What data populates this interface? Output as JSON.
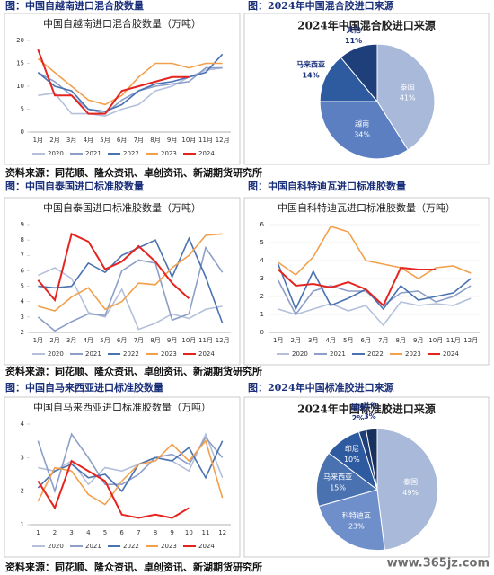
{
  "headers": [
    "图：中国自越南进口混合胶数量",
    "图：2024年中国混合胶进口来源",
    "图：中国自泰国进口标准胶数量",
    "图：中国自科特迪瓦进口标准胶数量",
    "图：中国自马来西亚进口标准胶数量",
    "图：2024年中国标准胶进口来源"
  ],
  "sources": [
    "资料来源：同花顺、隆众资讯、卓创资讯、新湖期货研究所",
    "资料来源：同花顺、隆众资讯、卓创资讯、新湖期货研究所",
    "资料来源：同花顺、隆众资讯、卓创资讯、新湖期货研究所"
  ],
  "watermark": "www.365jz.com",
  "chart_data": [
    {
      "type": "line",
      "title": "中国自越南进口混合胶数量（万吨）",
      "categories": [
        "1月",
        "2月",
        "3月",
        "4月",
        "5月",
        "6月",
        "7月",
        "8月",
        "9月",
        "10月",
        "11月",
        "12月"
      ],
      "ylim": [
        0,
        20
      ],
      "yticks": [
        0,
        5,
        10,
        15,
        20
      ],
      "grid": false,
      "series": [
        {
          "name": "2020",
          "color": "#b4c0da",
          "values": [
            8,
            8.5,
            4,
            4,
            3.5,
            5,
            6,
            9,
            10,
            12,
            13.5,
            14
          ]
        },
        {
          "name": "2021",
          "color": "#8d9fc9",
          "values": [
            13,
            11,
            8,
            5,
            4,
            7,
            9,
            10,
            10.5,
            11,
            14,
            14
          ]
        },
        {
          "name": "2022",
          "color": "#4a72b0",
          "values": [
            13,
            10,
            9,
            5,
            4.5,
            6,
            9,
            10.5,
            11,
            12,
            13,
            17
          ]
        },
        {
          "name": "2023",
          "color": "#f2a04c",
          "values": [
            16,
            13,
            10,
            7,
            6,
            8,
            12,
            15,
            15,
            14,
            15,
            15
          ]
        },
        {
          "name": "2024",
          "color": "#e52420",
          "values": [
            18,
            8,
            8,
            4,
            4,
            9,
            10,
            11,
            12,
            12,
            null,
            null
          ]
        }
      ]
    },
    {
      "type": "pie",
      "title": "2024年中国混合胶进口来源",
      "categories": [
        "泰国",
        "越南",
        "马来西亚",
        "其他"
      ],
      "values": [
        41,
        34,
        14,
        11
      ],
      "value_labels": [
        "41%",
        "34%",
        "14%",
        "11%"
      ],
      "colors": [
        "#a9b9d9",
        "#5b7fc0",
        "#2e5aa0",
        "#1f3f7a"
      ]
    },
    {
      "type": "line",
      "title": "中国自泰国进口标准胶数量（万吨）",
      "categories": [
        "1月",
        "2月",
        "3月",
        "4月",
        "5月",
        "6月",
        "7月",
        "8月",
        "9月",
        "10月",
        "11月",
        "12月"
      ],
      "ylim": [
        2,
        9
      ],
      "yticks": [
        2,
        3,
        4,
        5,
        6,
        7,
        8,
        9
      ],
      "grid": false,
      "series": [
        {
          "name": "2020",
          "color": "#b4c0da",
          "values": [
            5.7,
            6.2,
            5.5,
            3.3,
            3.0,
            4.8,
            2.2,
            2.6,
            3.2,
            2.9,
            3.5,
            3.7
          ]
        },
        {
          "name": "2021",
          "color": "#8d9fc9",
          "values": [
            3.0,
            2.1,
            2.7,
            3.2,
            3.1,
            6.0,
            6.7,
            6.5,
            2.8,
            3.2,
            7.5,
            5.9
          ]
        },
        {
          "name": "2022",
          "color": "#4a72b0",
          "values": [
            5.0,
            4.9,
            5.0,
            6.5,
            5.9,
            7.0,
            7.5,
            8.0,
            5.6,
            8.1,
            5.6,
            2.6
          ]
        },
        {
          "name": "2023",
          "color": "#f2a04c",
          "values": [
            3.7,
            3.4,
            4.3,
            4.9,
            3.5,
            4.0,
            5.2,
            5.1,
            6.2,
            7.0,
            8.3,
            8.4
          ]
        },
        {
          "name": "2024",
          "color": "#e52420",
          "values": [
            5.4,
            4.1,
            8.4,
            7.9,
            6.1,
            6.6,
            7.6,
            6.6,
            5.2,
            4.2,
            null,
            null
          ]
        }
      ]
    },
    {
      "type": "line",
      "title": "中国自科特迪瓦进口标准胶数量（万吨）",
      "categories": [
        "1月",
        "2月",
        "3月",
        "4月",
        "5月",
        "6月",
        "7月",
        "8月",
        "9月",
        "10月",
        "11月",
        "12月"
      ],
      "ylim": [
        0,
        6
      ],
      "yticks": [
        0,
        1,
        2,
        3,
        4,
        5,
        6
      ],
      "grid": true,
      "series": [
        {
          "name": "2020",
          "color": "#b4c0da",
          "values": [
            1.3,
            1.0,
            1.3,
            1.6,
            1.2,
            1.5,
            0.4,
            1.7,
            1.5,
            1.6,
            1.5,
            1.9
          ]
        },
        {
          "name": "2021",
          "color": "#8d9fc9",
          "values": [
            2.9,
            1.0,
            2.3,
            2.6,
            2.3,
            2.3,
            1.5,
            2.2,
            2.3,
            1.7,
            2.0,
            2.6
          ]
        },
        {
          "name": "2022",
          "color": "#4a72b0",
          "values": [
            3.8,
            1.3,
            3.4,
            1.5,
            1.9,
            2.4,
            1.3,
            2.6,
            1.8,
            2.0,
            2.2,
            3.0
          ]
        },
        {
          "name": "2023",
          "color": "#f2a04c",
          "values": [
            3.9,
            3.2,
            4.2,
            5.9,
            5.6,
            4.0,
            3.8,
            3.6,
            3.0,
            3.6,
            3.7,
            3.3
          ]
        },
        {
          "name": "2024",
          "color": "#e52420",
          "values": [
            3.5,
            2.6,
            2.7,
            2.5,
            2.8,
            2.4,
            1.5,
            3.6,
            3.5,
            3.5,
            null,
            null
          ]
        }
      ]
    },
    {
      "type": "line",
      "title": "中国自马来西亚进口标准胶数量（万吨）",
      "categories": [
        "1",
        "2",
        "3",
        "4",
        "5",
        "6",
        "7",
        "8",
        "9",
        "10",
        "11",
        "12"
      ],
      "ylim": [
        1,
        4
      ],
      "yticks": [
        1,
        2,
        3,
        4
      ],
      "grid": false,
      "series": [
        {
          "name": "2020",
          "color": "#b4c0da",
          "values": [
            2.7,
            2.6,
            2.9,
            2.2,
            2.7,
            2.6,
            2.8,
            3.0,
            2.9,
            2.6,
            3.7,
            2.4
          ]
        },
        {
          "name": "2021",
          "color": "#8d9fc9",
          "values": [
            3.5,
            2.0,
            3.7,
            3.0,
            2.2,
            2.2,
            2.5,
            3.0,
            3.1,
            2.8,
            3.6,
            3.0
          ]
        },
        {
          "name": "2022",
          "color": "#4a72b0",
          "values": [
            2.1,
            2.6,
            2.8,
            2.4,
            2.5,
            2.0,
            2.8,
            3.0,
            2.9,
            3.3,
            2.4,
            3.5
          ]
        },
        {
          "name": "2023",
          "color": "#f2a04c",
          "values": [
            1.7,
            2.7,
            2.6,
            1.9,
            1.6,
            2.3,
            2.8,
            2.9,
            3.4,
            2.9,
            3.5,
            1.8
          ]
        },
        {
          "name": "2024",
          "color": "#e52420",
          "values": [
            2.3,
            1.5,
            2.9,
            2.6,
            2.3,
            1.3,
            1.2,
            1.3,
            1.2,
            1.5,
            null,
            null
          ]
        }
      ]
    },
    {
      "type": "pie",
      "title": "2024年中国标准胶进口来源",
      "categories": [
        "泰国",
        "科特迪瓦",
        "马来西亚",
        "印尼",
        "越南",
        "其他"
      ],
      "values": [
        49,
        23,
        15,
        10,
        2,
        3
      ],
      "value_labels": [
        "49%",
        "23%",
        "15%",
        "10%",
        "2%",
        "3%"
      ],
      "colors": [
        "#a9b9d9",
        "#6f8fcb",
        "#4a72b0",
        "#2e5aa0",
        "#1f3f7a",
        "#17305e"
      ]
    }
  ]
}
